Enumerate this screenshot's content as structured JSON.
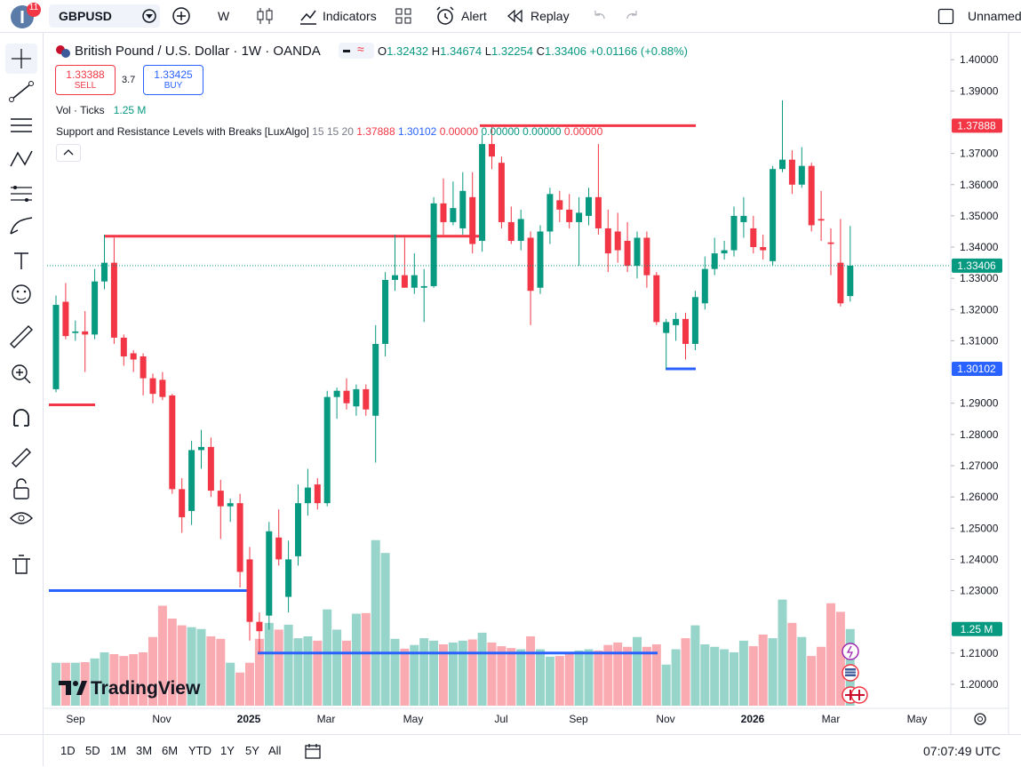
{
  "toolbar": {
    "badge": "11",
    "symbol": "GBPUSD",
    "interval": "W",
    "indicators": "Indicators",
    "alert": "Alert",
    "replay": "Replay",
    "layout_name": "Unnamed"
  },
  "legend": {
    "title": "British Pound / U.S. Dollar · 1W · OANDA",
    "ohlc_labels": [
      "O",
      "H",
      "L",
      "C"
    ],
    "change": "+0.01166 (+0.88%)",
    "sell_price": 1.33388,
    "sell": "SELL",
    "spread": 3.7,
    "buy_price": 1.33425,
    "buy": "BUY"
  },
  "volume_legend": {
    "name": "Vol · Ticks",
    "value": "1.25 M"
  },
  "indicator": {
    "name": "Support and Resistance Levels with Breaks [LuxAlgo]",
    "params": "15 15 20",
    "extra": [
      "0.00000",
      "0.00000",
      "0.00000",
      "0.00000"
    ]
  },
  "chart_data": {
    "type": "candlestick",
    "up_color": "#089981",
    "down_color": "#f23645",
    "open": [
      1.2945,
      1.3225,
      1.3125,
      1.313,
      1.312,
      1.329,
      1.335,
      1.311,
      1.306,
      1.305,
      1.298,
      1.2975,
      1.2925,
      1.2625,
      1.2555,
      1.275,
      1.276,
      1.262,
      1.257,
      1.258,
      1.24,
      1.22,
      1.222,
      1.247,
      1.228,
      1.241,
      1.258,
      1.264,
      1.258,
      1.292,
      1.294,
      1.289,
      1.2945,
      1.286,
      1.309,
      1.3295,
      1.331,
      1.327,
      1.327,
      1.3275,
      1.354,
      1.348,
      1.346,
      1.356,
      1.342,
      1.373,
      1.367,
      1.348,
      1.342,
      1.343,
      1.327,
      1.345,
      1.355,
      1.352,
      1.348,
      1.35,
      1.356,
      1.346,
      1.345,
      1.342,
      1.334,
      1.343,
      1.331,
      1.3125,
      1.315,
      1.317,
      1.309,
      1.322,
      1.333,
      1.338,
      1.339,
      1.348,
      1.346,
      1.34,
      1.3355,
      1.365,
      1.368,
      1.36,
      1.366,
      1.349,
      1.3415,
      1.335,
      1.32432
    ],
    "high": [
      1.3245,
      1.3285,
      1.3165,
      1.3195,
      1.333,
      1.344,
      1.343,
      1.312,
      1.307,
      1.306,
      1.2995,
      1.3,
      1.293,
      1.266,
      1.278,
      1.2815,
      1.279,
      1.2655,
      1.2595,
      1.261,
      1.244,
      1.223,
      1.252,
      1.256,
      1.246,
      1.264,
      1.269,
      1.266,
      1.294,
      1.295,
      1.298,
      1.296,
      1.296,
      1.315,
      1.332,
      1.344,
      1.343,
      1.338,
      1.333,
      1.356,
      1.362,
      1.361,
      1.364,
      1.364,
      1.376,
      1.3785,
      1.369,
      1.353,
      1.352,
      1.345,
      1.347,
      1.359,
      1.358,
      1.357,
      1.356,
      1.359,
      1.373,
      1.352,
      1.351,
      1.348,
      1.345,
      1.345,
      1.332,
      1.317,
      1.319,
      1.319,
      1.326,
      1.337,
      1.343,
      1.342,
      1.353,
      1.356,
      1.35,
      1.344,
      1.366,
      1.387,
      1.371,
      1.372,
      1.367,
      1.358,
      1.346,
      1.349,
      1.34674
    ],
    "low": [
      1.2935,
      1.3105,
      1.31,
      1.3,
      1.3105,
      1.3265,
      1.309,
      1.302,
      1.3,
      1.2925,
      1.29,
      1.291,
      1.261,
      1.2485,
      1.251,
      1.269,
      1.26,
      1.2465,
      1.252,
      1.231,
      1.214,
      1.21,
      1.2175,
      1.238,
      1.223,
      1.238,
      1.254,
      1.256,
      1.257,
      1.285,
      1.288,
      1.286,
      1.286,
      1.271,
      1.305,
      1.326,
      1.327,
      1.325,
      1.316,
      1.327,
      1.344,
      1.347,
      1.344,
      1.338,
      1.3385,
      1.365,
      1.346,
      1.341,
      1.339,
      1.315,
      1.325,
      1.341,
      1.348,
      1.346,
      1.334,
      1.347,
      1.344,
      1.332,
      1.335,
      1.332,
      1.33,
      1.327,
      1.315,
      1.301,
      1.31,
      1.304,
      1.307,
      1.32,
      1.331,
      1.336,
      1.337,
      1.343,
      1.338,
      1.336,
      1.334,
      1.364,
      1.357,
      1.359,
      1.345,
      1.342,
      1.331,
      1.321,
      1.32254
    ],
    "close": [
      1.3215,
      1.3115,
      1.313,
      1.312,
      1.329,
      1.335,
      1.311,
      1.305,
      1.304,
      1.298,
      1.293,
      1.292,
      1.2625,
      1.2535,
      1.275,
      1.276,
      1.262,
      1.257,
      1.258,
      1.236,
      1.22,
      1.217,
      1.249,
      1.24,
      1.24,
      1.258,
      1.263,
      1.258,
      1.292,
      1.294,
      1.29,
      1.2945,
      1.288,
      1.309,
      1.3295,
      1.331,
      1.327,
      1.331,
      1.3275,
      1.354,
      1.348,
      1.3525,
      1.358,
      1.341,
      1.373,
      1.369,
      1.348,
      1.342,
      1.349,
      1.326,
      1.345,
      1.357,
      1.352,
      1.348,
      1.351,
      1.356,
      1.346,
      1.338,
      1.339,
      1.334,
      1.343,
      1.331,
      1.316,
      1.316,
      1.317,
      1.309,
      1.324,
      1.333,
      1.338,
      1.339,
      1.35,
      1.35,
      1.34,
      1.339,
      1.365,
      1.368,
      1.36,
      1.366,
      1.347,
      1.3485,
      1.341,
      1.322,
      1.33406
    ],
    "volume": [
      0.7,
      0.7,
      0.7,
      0.71,
      0.77,
      0.87,
      0.84,
      0.81,
      0.84,
      0.87,
      1.12,
      1.63,
      1.42,
      1.31,
      1.28,
      1.25,
      1.13,
      1.09,
      0.7,
      0.54,
      0.7,
      1.09,
      1.35,
      1.24,
      1.32,
      1.1,
      1.13,
      1.06,
      1.57,
      1.24,
      1.06,
      1.5,
      1.51,
      2.7,
      2.49,
      1.09,
      0.93,
      0.99,
      1.1,
      1.06,
      1.0,
      1.03,
      1.06,
      1.08,
      1.19,
      1.03,
      0.97,
      0.94,
      0.92,
      1.13,
      0.92,
      0.8,
      0.81,
      0.87,
      0.9,
      0.92,
      0.9,
      0.99,
      1.03,
      0.96,
      1.12,
      0.96,
      1.0,
      0.67,
      0.92,
      1.1,
      1.31,
      1.0,
      0.96,
      0.92,
      0.87,
      1.06,
      0.97,
      1.16,
      1.1,
      1.73,
      1.35,
      1.12,
      0.81,
      0.96,
      1.67,
      1.53,
      1.25
    ],
    "resistance_levels": [
      1.2895,
      1.3435,
      1.37888
    ],
    "support_levels": [
      1.23,
      1.21,
      1.30102
    ],
    "time_labels": [
      "Sep",
      "Nov",
      "2025",
      "Mar",
      "May",
      "Jul",
      "Sep",
      "Nov",
      "2026",
      "Mar",
      "May"
    ],
    "ylim": [
      1.1923,
      1.4086
    ],
    "yticks": [
      {
        "value": 1.4,
        "label": "1.40000"
      },
      {
        "value": 1.39,
        "label": "1.39000"
      },
      {
        "value": 1.37,
        "label": "1.37000"
      },
      {
        "value": 1.36,
        "label": "1.36000"
      },
      {
        "value": 1.35,
        "label": "1.35000"
      },
      {
        "value": 1.34,
        "label": "1.34000"
      },
      {
        "value": 1.33,
        "label": "1.33000"
      },
      {
        "value": 1.32,
        "label": "1.32000"
      },
      {
        "value": 1.31,
        "label": "1.31000"
      },
      {
        "value": 1.29,
        "label": "1.29000"
      },
      {
        "value": 1.28,
        "label": "1.28000"
      },
      {
        "value": 1.27,
        "label": "1.27000"
      },
      {
        "value": 1.26,
        "label": "1.26000"
      },
      {
        "value": 1.25,
        "label": "1.25000"
      },
      {
        "value": 1.24,
        "label": "1.24000"
      },
      {
        "value": 1.23,
        "label": "1.23000"
      },
      {
        "value": 1.21,
        "label": "1.21000"
      },
      {
        "value": 1.2,
        "label": "1.20000"
      }
    ]
  },
  "watermark": "TradingView",
  "bottom": {
    "ranges": [
      "1D",
      "5D",
      "1M",
      "3M",
      "6M",
      "YTD",
      "1Y",
      "5Y",
      "All"
    ],
    "clock": "07:07:49 UTC"
  }
}
